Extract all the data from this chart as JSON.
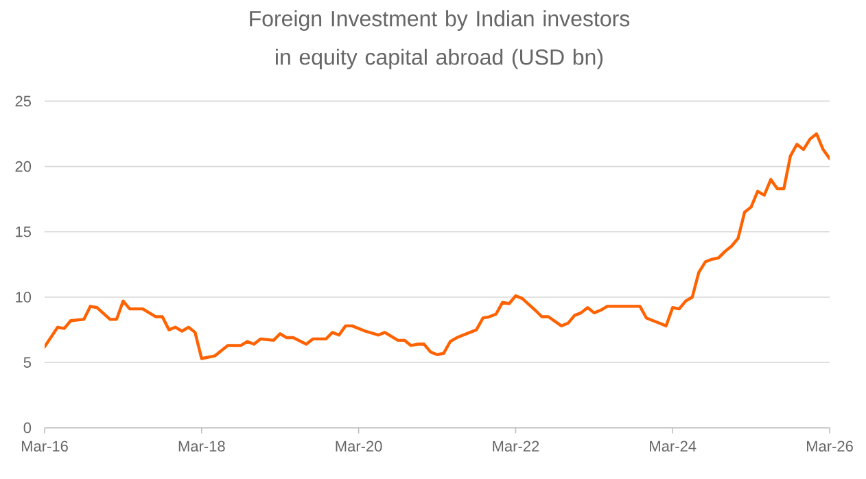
{
  "chart_data": {
    "type": "line",
    "title": "Foreign Investment by Indian investors in equity capital abroad (USD bn)",
    "x": [
      "2016-03",
      "2016-05",
      "2016-06",
      "2016-07",
      "2016-09",
      "2016-10",
      "2016-11",
      "2017-01",
      "2017-02",
      "2017-03",
      "2017-04",
      "2017-06",
      "2017-08",
      "2017-09",
      "2017-10",
      "2017-11",
      "2017-12",
      "2018-01",
      "2018-02",
      "2018-03",
      "2018-05",
      "2018-07",
      "2018-09",
      "2018-10",
      "2018-11",
      "2018-12",
      "2019-02",
      "2019-03",
      "2019-04",
      "2019-05",
      "2019-07",
      "2019-08",
      "2019-10",
      "2019-11",
      "2019-12",
      "2020-01",
      "2020-02",
      "2020-04",
      "2020-06",
      "2020-07",
      "2020-09",
      "2020-10",
      "2020-11",
      "2020-12",
      "2021-01",
      "2021-02",
      "2021-03",
      "2021-04",
      "2021-05",
      "2021-06",
      "2021-09",
      "2021-10",
      "2021-11",
      "2021-12",
      "2022-01",
      "2022-02",
      "2022-03",
      "2022-04",
      "2022-06",
      "2022-07",
      "2022-08",
      "2022-10",
      "2022-11",
      "2022-12",
      "2023-01",
      "2023-02",
      "2023-03",
      "2023-04",
      "2023-05",
      "2023-08",
      "2023-09",
      "2023-10",
      "2023-11",
      "2024-01",
      "2024-02",
      "2024-03",
      "2024-04",
      "2024-05",
      "2024-06",
      "2024-07",
      "2024-08",
      "2024-09",
      "2024-10",
      "2024-11",
      "2024-12",
      "2025-01",
      "2025-02",
      "2025-03",
      "2025-04",
      "2025-05",
      "2025-06",
      "2025-07",
      "2025-08",
      "2025-09",
      "2025-10",
      "2025-11",
      "2025-12",
      "2026-01",
      "2026-02",
      "2026-03"
    ],
    "series": [
      {
        "color": "#ff6200",
        "values": [
          6.2,
          7.7,
          7.6,
          8.2,
          8.3,
          9.3,
          9.2,
          8.3,
          8.3,
          9.7,
          9.1,
          9.1,
          8.5,
          8.5,
          7.5,
          7.7,
          7.4,
          7.7,
          7.3,
          5.3,
          5.5,
          6.3,
          6.3,
          6.6,
          6.4,
          6.8,
          6.7,
          7.2,
          6.9,
          6.9,
          6.4,
          6.8,
          6.8,
          7.3,
          7.1,
          7.8,
          7.8,
          7.4,
          7.1,
          7.3,
          6.7,
          6.7,
          6.3,
          6.4,
          6.4,
          5.8,
          5.6,
          5.7,
          6.6,
          6.9,
          7.5,
          8.4,
          8.5,
          8.7,
          9.6,
          9.5,
          10.1,
          9.9,
          9.0,
          8.5,
          8.5,
          7.8,
          8.0,
          8.6,
          8.8,
          9.2,
          8.8,
          9.0,
          9.3,
          9.3,
          9.3,
          9.3,
          8.4,
          8.0,
          7.8,
          9.2,
          9.1,
          9.7,
          10.0,
          11.9,
          12.7,
          12.9,
          13.0,
          13.5,
          13.9,
          14.5,
          16.5,
          16.9,
          18.1,
          17.8,
          19.0,
          18.3,
          18.3,
          20.8,
          21.7,
          21.3,
          22.1,
          22.5,
          21.3,
          20.6
        ]
      }
    ],
    "xlim": [
      "2016-03",
      "2026-03"
    ],
    "xticks": [
      {
        "value": "2016-03",
        "label": "Mar-16"
      },
      {
        "value": "2018-03",
        "label": "Mar-18"
      },
      {
        "value": "2020-03",
        "label": "Mar-20"
      },
      {
        "value": "2022-03",
        "label": "Mar-22"
      },
      {
        "value": "2024-03",
        "label": "Mar-24"
      },
      {
        "value": "2026-03",
        "label": "Mar-26"
      }
    ],
    "ylim": [
      0,
      25
    ],
    "yticks": [
      0,
      5,
      10,
      15,
      20,
      25
    ],
    "grid": "y",
    "marker": "none",
    "line_style": "solid"
  }
}
